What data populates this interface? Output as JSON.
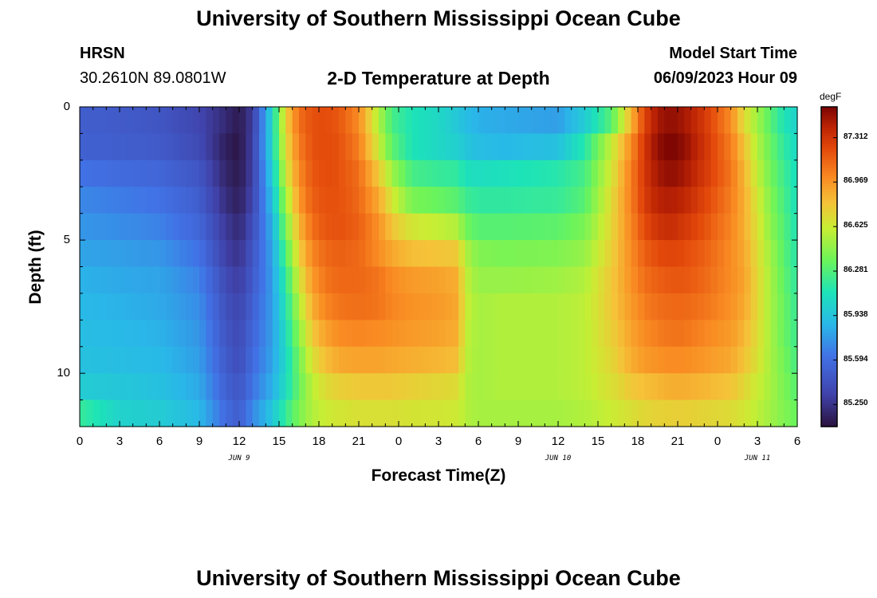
{
  "page": {
    "title": "University of Southern Mississippi Ocean Cube",
    "footer_title": "University of Southern Mississippi Ocean Cube",
    "station": "HRSN",
    "coordinates": "30.2610N  89.0801W",
    "subtitle": "2-D Temperature at Depth",
    "model_start_label": "Model Start Time",
    "model_start_value": "06/09/2023 Hour 09"
  },
  "chart_data": {
    "type": "heatmap",
    "title": "2-D Temperature at Depth",
    "xlabel": "Forecast Time(Z)",
    "ylabel": "Depth (ft)",
    "units": "degF",
    "x_range_hours": [
      0,
      54
    ],
    "xlim": [
      "2023-06-09 00Z",
      "2023-06-11 06Z"
    ],
    "x_tick_labels": [
      "0",
      "3",
      "6",
      "9",
      "12",
      "15",
      "18",
      "21",
      "0",
      "3",
      "6",
      "9",
      "12",
      "15",
      "18",
      "21",
      "0",
      "3",
      "6"
    ],
    "x_date_labels": [
      {
        "label": "JUN 9",
        "hour": 12
      },
      {
        "label": "JUN 10",
        "hour": 36
      },
      {
        "label": "JUN 11",
        "hour": 51
      }
    ],
    "y_range_ft": [
      0,
      12
    ],
    "y_tick_labels": [
      {
        "label": "0",
        "value": 0
      },
      {
        "label": "5",
        "value": 5
      },
      {
        "label": "10",
        "value": 10
      }
    ],
    "colorbar": {
      "min": 85.08,
      "max": 87.55,
      "tick_labels": [
        "87.312",
        "86.969",
        "86.625",
        "86.281",
        "85.938",
        "85.594",
        "85.250"
      ],
      "tick_values": [
        87.312,
        86.969,
        86.625,
        86.281,
        85.938,
        85.594,
        85.25
      ]
    },
    "time_hours": [
      0,
      3,
      6,
      9,
      11,
      12,
      13,
      14.5,
      15.5,
      16.5,
      17.5,
      18.5,
      19.5,
      21,
      22.5,
      23.5,
      25,
      27,
      28.5,
      29,
      30,
      32,
      36,
      38,
      40,
      41.5,
      42.5,
      43.5,
      44.5,
      45.5,
      47,
      49,
      50,
      51,
      52,
      53,
      54
    ],
    "depth_ft": [
      0.5,
      1.5,
      2.5,
      3.5,
      4.5,
      5.5,
      6.5,
      7.5,
      8.5,
      9.5,
      10.5,
      11.5
    ],
    "values_degF": [
      [
        85.5,
        85.48,
        85.45,
        85.35,
        85.2,
        85.12,
        85.3,
        86.05,
        86.75,
        87.1,
        87.2,
        87.22,
        87.18,
        87.0,
        86.55,
        86.25,
        86.12,
        86.05,
        85.95,
        85.9,
        85.85,
        85.82,
        85.78,
        85.98,
        86.3,
        86.85,
        87.25,
        87.45,
        87.5,
        87.45,
        87.3,
        87.0,
        86.7,
        86.5,
        86.3,
        86.12,
        86.02
      ],
      [
        85.52,
        85.5,
        85.48,
        85.38,
        85.15,
        85.1,
        85.32,
        86.05,
        86.7,
        87.05,
        87.2,
        87.22,
        87.2,
        87.05,
        86.62,
        86.32,
        86.12,
        86.05,
        86.0,
        85.95,
        85.9,
        85.88,
        85.92,
        86.15,
        86.6,
        87.0,
        87.3,
        87.5,
        87.55,
        87.5,
        87.32,
        87.05,
        86.8,
        86.55,
        86.35,
        86.18,
        86.05
      ],
      [
        85.62,
        85.58,
        85.55,
        85.45,
        85.18,
        85.12,
        85.32,
        85.98,
        86.62,
        87.0,
        87.18,
        87.22,
        87.2,
        87.1,
        86.78,
        86.5,
        86.25,
        86.2,
        86.18,
        86.1,
        86.08,
        86.1,
        86.15,
        86.25,
        86.65,
        87.05,
        87.3,
        87.45,
        87.5,
        87.45,
        87.3,
        87.08,
        86.85,
        86.6,
        86.38,
        86.22,
        86.08
      ],
      [
        85.7,
        85.66,
        85.62,
        85.5,
        85.22,
        85.15,
        85.35,
        85.92,
        86.5,
        86.95,
        87.15,
        87.2,
        87.2,
        87.12,
        86.9,
        86.65,
        86.4,
        86.35,
        86.3,
        86.22,
        86.18,
        86.18,
        86.2,
        86.3,
        86.7,
        87.05,
        87.28,
        87.4,
        87.42,
        87.38,
        87.25,
        87.05,
        86.88,
        86.65,
        86.42,
        86.25,
        86.1
      ],
      [
        85.75,
        85.72,
        85.68,
        85.55,
        85.28,
        85.2,
        85.4,
        85.85,
        86.4,
        86.85,
        87.1,
        87.18,
        87.2,
        87.15,
        86.98,
        86.8,
        86.65,
        86.6,
        86.55,
        86.38,
        86.3,
        86.3,
        86.32,
        86.4,
        86.72,
        87.02,
        87.22,
        87.32,
        87.35,
        87.3,
        87.2,
        87.02,
        86.88,
        86.68,
        86.45,
        86.28,
        86.12
      ],
      [
        85.8,
        85.78,
        85.75,
        85.62,
        85.32,
        85.25,
        85.45,
        85.8,
        86.28,
        86.75,
        87.02,
        87.12,
        87.15,
        87.12,
        87.0,
        86.9,
        86.82,
        86.8,
        86.78,
        86.55,
        86.42,
        86.4,
        86.42,
        86.48,
        86.75,
        87.0,
        87.15,
        87.22,
        87.25,
        87.22,
        87.15,
        87.0,
        86.9,
        86.7,
        86.5,
        86.3,
        86.15
      ],
      [
        85.85,
        85.82,
        85.8,
        85.68,
        85.38,
        85.3,
        85.48,
        85.78,
        86.18,
        86.65,
        86.95,
        87.08,
        87.12,
        87.12,
        87.08,
        87.0,
        86.95,
        86.92,
        86.88,
        86.6,
        86.48,
        86.48,
        86.5,
        86.55,
        86.78,
        86.98,
        87.1,
        87.15,
        87.18,
        87.18,
        87.12,
        87.0,
        86.92,
        86.72,
        86.52,
        86.32,
        86.18
      ],
      [
        85.88,
        85.85,
        85.82,
        85.72,
        85.42,
        85.35,
        85.52,
        85.78,
        86.12,
        86.55,
        86.88,
        87.02,
        87.08,
        87.1,
        87.08,
        87.02,
        86.98,
        86.95,
        86.9,
        86.62,
        86.52,
        86.55,
        86.55,
        86.58,
        86.78,
        86.95,
        87.05,
        87.1,
        87.12,
        87.12,
        87.08,
        86.98,
        86.9,
        86.72,
        86.52,
        86.35,
        86.2
      ],
      [
        85.9,
        85.88,
        85.85,
        85.75,
        85.45,
        85.38,
        85.55,
        85.78,
        86.08,
        86.45,
        86.78,
        86.92,
        87.0,
        87.02,
        87.0,
        86.98,
        86.95,
        86.92,
        86.88,
        86.6,
        86.52,
        86.55,
        86.55,
        86.58,
        86.75,
        86.92,
        87.0,
        87.05,
        87.08,
        87.08,
        87.02,
        86.95,
        86.85,
        86.7,
        86.52,
        86.35,
        86.22
      ],
      [
        85.92,
        85.9,
        85.88,
        85.78,
        85.48,
        85.4,
        85.58,
        85.8,
        86.05,
        86.38,
        86.68,
        86.82,
        86.9,
        86.92,
        86.92,
        86.9,
        86.88,
        86.85,
        86.82,
        86.58,
        86.52,
        86.55,
        86.55,
        86.58,
        86.72,
        86.88,
        86.95,
        86.98,
        87.0,
        87.0,
        86.96,
        86.9,
        86.8,
        86.68,
        86.52,
        86.38,
        86.25
      ],
      [
        85.98,
        85.95,
        85.92,
        85.82,
        85.52,
        85.45,
        85.62,
        85.85,
        86.08,
        86.35,
        86.58,
        86.7,
        86.75,
        86.78,
        86.78,
        86.78,
        86.75,
        86.72,
        86.7,
        86.56,
        86.52,
        86.55,
        86.55,
        86.58,
        86.68,
        86.78,
        86.82,
        86.85,
        86.88,
        86.88,
        86.85,
        86.8,
        86.72,
        86.62,
        86.52,
        86.4,
        86.3
      ],
      [
        86.2,
        86.02,
        85.98,
        85.88,
        85.58,
        85.5,
        85.7,
        85.95,
        86.2,
        86.4,
        86.55,
        86.62,
        86.65,
        86.68,
        86.68,
        86.68,
        86.66,
        86.65,
        86.63,
        86.56,
        86.52,
        86.52,
        86.52,
        86.55,
        86.62,
        86.68,
        86.72,
        86.74,
        86.75,
        86.75,
        86.73,
        86.7,
        86.65,
        86.58,
        86.5,
        86.42,
        86.35
      ]
    ]
  }
}
